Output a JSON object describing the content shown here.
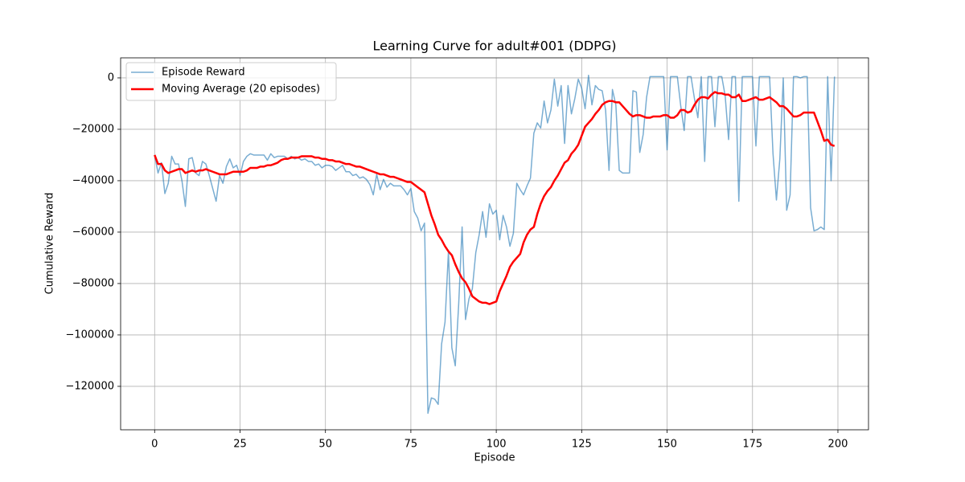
{
  "chart_data": {
    "type": "line",
    "title": "Learning Curve for adult#001 (DDPG)",
    "xlabel": "Episode",
    "ylabel": "Cumulative Reward",
    "x": [
      0,
      1,
      2,
      3,
      4,
      5,
      6,
      7,
      8,
      9,
      10,
      11,
      12,
      13,
      14,
      15,
      16,
      17,
      18,
      19,
      20,
      21,
      22,
      23,
      24,
      25,
      26,
      27,
      28,
      29,
      30,
      31,
      32,
      33,
      34,
      35,
      36,
      37,
      38,
      39,
      40,
      41,
      42,
      43,
      44,
      45,
      46,
      47,
      48,
      49,
      50,
      51,
      52,
      53,
      54,
      55,
      56,
      57,
      58,
      59,
      60,
      61,
      62,
      63,
      64,
      65,
      66,
      67,
      68,
      69,
      70,
      71,
      72,
      73,
      74,
      75,
      76,
      77,
      78,
      79,
      80,
      81,
      82,
      83,
      84,
      85,
      86,
      87,
      88,
      89,
      90,
      91,
      92,
      93,
      94,
      95,
      96,
      97,
      98,
      99,
      100,
      101,
      102,
      103,
      104,
      105,
      106,
      107,
      108,
      109,
      110,
      111,
      112,
      113,
      114,
      115,
      116,
      117,
      118,
      119,
      120,
      121,
      122,
      123,
      124,
      125,
      126,
      127,
      128,
      129,
      130,
      131,
      132,
      133,
      134,
      135,
      136,
      137,
      138,
      139,
      140,
      141,
      142,
      143,
      144,
      145,
      146,
      147,
      148,
      149,
      150,
      151,
      152,
      153,
      154,
      155,
      156,
      157,
      158,
      159,
      160,
      161,
      162,
      163,
      164,
      165,
      166,
      167,
      168,
      169,
      170,
      171,
      172,
      173,
      174,
      175,
      176,
      177,
      178,
      179,
      180,
      181,
      182,
      183,
      184,
      185,
      186,
      187,
      188,
      189,
      190,
      191,
      192,
      193,
      194,
      195,
      196,
      197,
      198,
      199
    ],
    "series": [
      {
        "name": "Episode Reward",
        "color": "#1f77b4",
        "opacity": 0.6,
        "width": 1.5,
        "values": [
          -30000,
          -37000,
          -33000,
          -45000,
          -41000,
          -30500,
          -33500,
          -33500,
          -40000,
          -50000,
          -31500,
          -31000,
          -37000,
          -38000,
          -32500,
          -33500,
          -38000,
          -43000,
          -48000,
          -38000,
          -41000,
          -34500,
          -31500,
          -35000,
          -34000,
          -38000,
          -32500,
          -30500,
          -29500,
          -30000,
          -30000,
          -30000,
          -30000,
          -32000,
          -29500,
          -31000,
          -30500,
          -30500,
          -30500,
          -31500,
          -30500,
          -31500,
          -31000,
          -32000,
          -31500,
          -32500,
          -32500,
          -34000,
          -33500,
          -35000,
          -34000,
          -34000,
          -34500,
          -36000,
          -35000,
          -34000,
          -36500,
          -36500,
          -38000,
          -37500,
          -39000,
          -38500,
          -39500,
          -41500,
          -45500,
          -37500,
          -43500,
          -39500,
          -42500,
          -41000,
          -42000,
          -42000,
          -42000,
          -43500,
          -45500,
          -43000,
          -52000,
          -54500,
          -59500,
          -56500,
          -130500,
          -124500,
          -125000,
          -127000,
          -103500,
          -95000,
          -67500,
          -105000,
          -112000,
          -88000,
          -58000,
          -94000,
          -86000,
          -82000,
          -68000,
          -61000,
          -52000,
          -62000,
          -49000,
          -53000,
          -51500,
          -63000,
          -53500,
          -58000,
          -65500,
          -60500,
          -41000,
          -43500,
          -45500,
          -42000,
          -39000,
          -21500,
          -17500,
          -19500,
          -9000,
          -17500,
          -12500,
          -500,
          -11000,
          -3000,
          -25500,
          -3000,
          -14000,
          -8000,
          -500,
          -4000,
          -12000,
          1000,
          -10500,
          -3000,
          -4500,
          -5000,
          -12500,
          -36000,
          -4500,
          -10500,
          -36000,
          -37000,
          -37000,
          -37000,
          -5000,
          -5500,
          -29000,
          -22000,
          -7500,
          500,
          500,
          500,
          500,
          500,
          -28000,
          500,
          500,
          500,
          -11000,
          -20500,
          500,
          500,
          -8000,
          -15500,
          500,
          -32500,
          500,
          500,
          -19000,
          500,
          500,
          -7000,
          -24000,
          500,
          500,
          -48000,
          500,
          500,
          500,
          500,
          -26500,
          500,
          500,
          500,
          500,
          -29500,
          -47500,
          -31500,
          0,
          -51500,
          -45500,
          500,
          500,
          0,
          500,
          500,
          -50500,
          -59500,
          -59000,
          -58000,
          -59000,
          500,
          -40000,
          500
        ]
      },
      {
        "name": "Moving Average (20 episodes)",
        "color": "#ff0000",
        "opacity": 1,
        "width": 2.5,
        "values": [
          -30000,
          -33500,
          -33500,
          -36000,
          -37000,
          -36500,
          -36000,
          -35500,
          -35500,
          -37000,
          -36500,
          -36000,
          -36500,
          -36000,
          -36000,
          -35500,
          -36000,
          -36500,
          -37000,
          -37500,
          -37500,
          -37500,
          -37000,
          -36500,
          -36500,
          -36500,
          -36500,
          -36000,
          -35000,
          -35000,
          -35000,
          -34500,
          -34500,
          -34000,
          -34000,
          -33500,
          -33000,
          -32000,
          -31500,
          -31500,
          -31000,
          -31000,
          -31000,
          -30500,
          -30500,
          -30500,
          -30500,
          -31000,
          -31000,
          -31500,
          -31500,
          -32000,
          -32000,
          -32500,
          -32500,
          -33000,
          -33500,
          -33500,
          -34000,
          -34500,
          -34500,
          -35000,
          -35500,
          -36000,
          -36500,
          -37000,
          -37500,
          -37500,
          -38000,
          -38500,
          -38500,
          -39000,
          -39500,
          -40000,
          -40500,
          -40500,
          -41500,
          -42500,
          -43500,
          -44500,
          -49000,
          -53500,
          -57000,
          -61000,
          -63000,
          -65500,
          -67500,
          -69000,
          -72500,
          -75500,
          -78000,
          -79500,
          -82000,
          -85000,
          -86000,
          -87000,
          -87500,
          -87500,
          -88000,
          -87500,
          -87000,
          -83000,
          -80000,
          -77000,
          -73500,
          -71500,
          -70000,
          -68500,
          -64000,
          -61000,
          -59000,
          -58000,
          -53000,
          -49000,
          -46000,
          -44000,
          -42500,
          -40000,
          -38000,
          -35500,
          -33000,
          -32000,
          -29500,
          -28000,
          -26000,
          -22500,
          -19000,
          -17500,
          -16000,
          -14000,
          -12500,
          -10500,
          -9500,
          -9000,
          -9000,
          -9500,
          -9500,
          -11000,
          -12500,
          -14000,
          -15000,
          -14500,
          -14500,
          -15000,
          -15500,
          -15500,
          -15000,
          -15000,
          -15000,
          -14500,
          -14500,
          -15500,
          -15500,
          -14500,
          -12500,
          -12500,
          -13500,
          -13000,
          -10500,
          -8500,
          -7500,
          -7500,
          -8000,
          -6500,
          -5500,
          -6000,
          -6000,
          -6500,
          -6500,
          -7500,
          -7500,
          -6500,
          -9000,
          -9000,
          -8500,
          -8000,
          -7500,
          -8500,
          -8500,
          -8000,
          -7500,
          -8500,
          -9500,
          -11000,
          -11000,
          -12000,
          -13500,
          -15000,
          -15000,
          -14500,
          -13500,
          -13500,
          -13500,
          -13500,
          -17000,
          -20500,
          -24500,
          -24000,
          -26000,
          -26500
        ]
      }
    ],
    "xlim": [
      -9.95,
      208.95
    ],
    "ylim": [
      -136900,
      7800
    ],
    "xticks": [
      0,
      25,
      50,
      75,
      100,
      125,
      150,
      175,
      200
    ],
    "yticks": [
      0,
      {
        "value": -20000,
        "label": "−20000"
      },
      {
        "value": -40000,
        "label": "−40000"
      },
      {
        "value": -60000,
        "label": "−60000"
      },
      {
        "value": -80000,
        "label": "−80000"
      },
      {
        "value": -100000,
        "label": "−100000"
      },
      {
        "value": -120000,
        "label": "−120000"
      }
    ],
    "grid": true,
    "legend": "upper-left"
  }
}
